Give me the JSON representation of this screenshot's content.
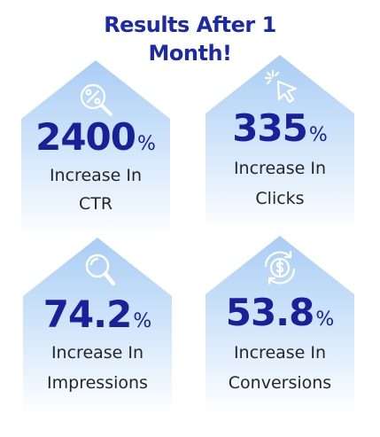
{
  "header": {
    "title_line1": "Results After 1",
    "title_line2": "Month!"
  },
  "colors": {
    "accent": "#18209a",
    "card_top": "#a9cdf4",
    "card_bottom": "#ffffff"
  },
  "cards": [
    {
      "value": "2400",
      "unit": "%",
      "line1": "Increase In",
      "line2": "CTR",
      "icon": "percent-magnifier-icon"
    },
    {
      "value": "335",
      "unit": "%",
      "line1": "Increase In",
      "line2": "Clicks",
      "icon": "cursor-click-icon"
    },
    {
      "value": "74.2",
      "unit": "%",
      "line1": "Increase In",
      "line2": "Impressions",
      "icon": "magnifier-icon"
    },
    {
      "value": "53.8",
      "unit": "%",
      "line1": "Increase In",
      "line2": "Conversions",
      "icon": "dollar-cycle-icon"
    }
  ]
}
